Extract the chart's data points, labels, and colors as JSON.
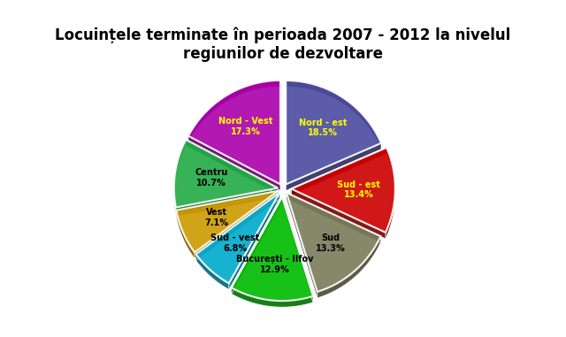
{
  "title": "Locuințele terminate în perioada 2007 - 2012 la nivelul\nregiunilor de dezvoltare",
  "labels": [
    "Nord - est",
    "Sud - est",
    "Sud",
    "București - Ilfov",
    "Sud - vest",
    "Vest",
    "Centru",
    "Nord - Vest"
  ],
  "values": [
    18.5,
    13.4,
    13.3,
    12.9,
    6.8,
    7.1,
    10.7,
    17.3
  ],
  "colors": [
    "#4B4B9F",
    "#CC0000",
    "#7A7A5A",
    "#00BB00",
    "#00AACC",
    "#CC9900",
    "#22AA44",
    "#AA00AA"
  ],
  "explode": [
    0.05,
    0.08,
    0.05,
    0.08,
    0.05,
    0.05,
    0.05,
    0.05
  ],
  "label_colors": [
    "yellow",
    "yellow",
    "black",
    "black",
    "black",
    "black",
    "black",
    "yellow"
  ],
  "background_color": "#d0dce8"
}
